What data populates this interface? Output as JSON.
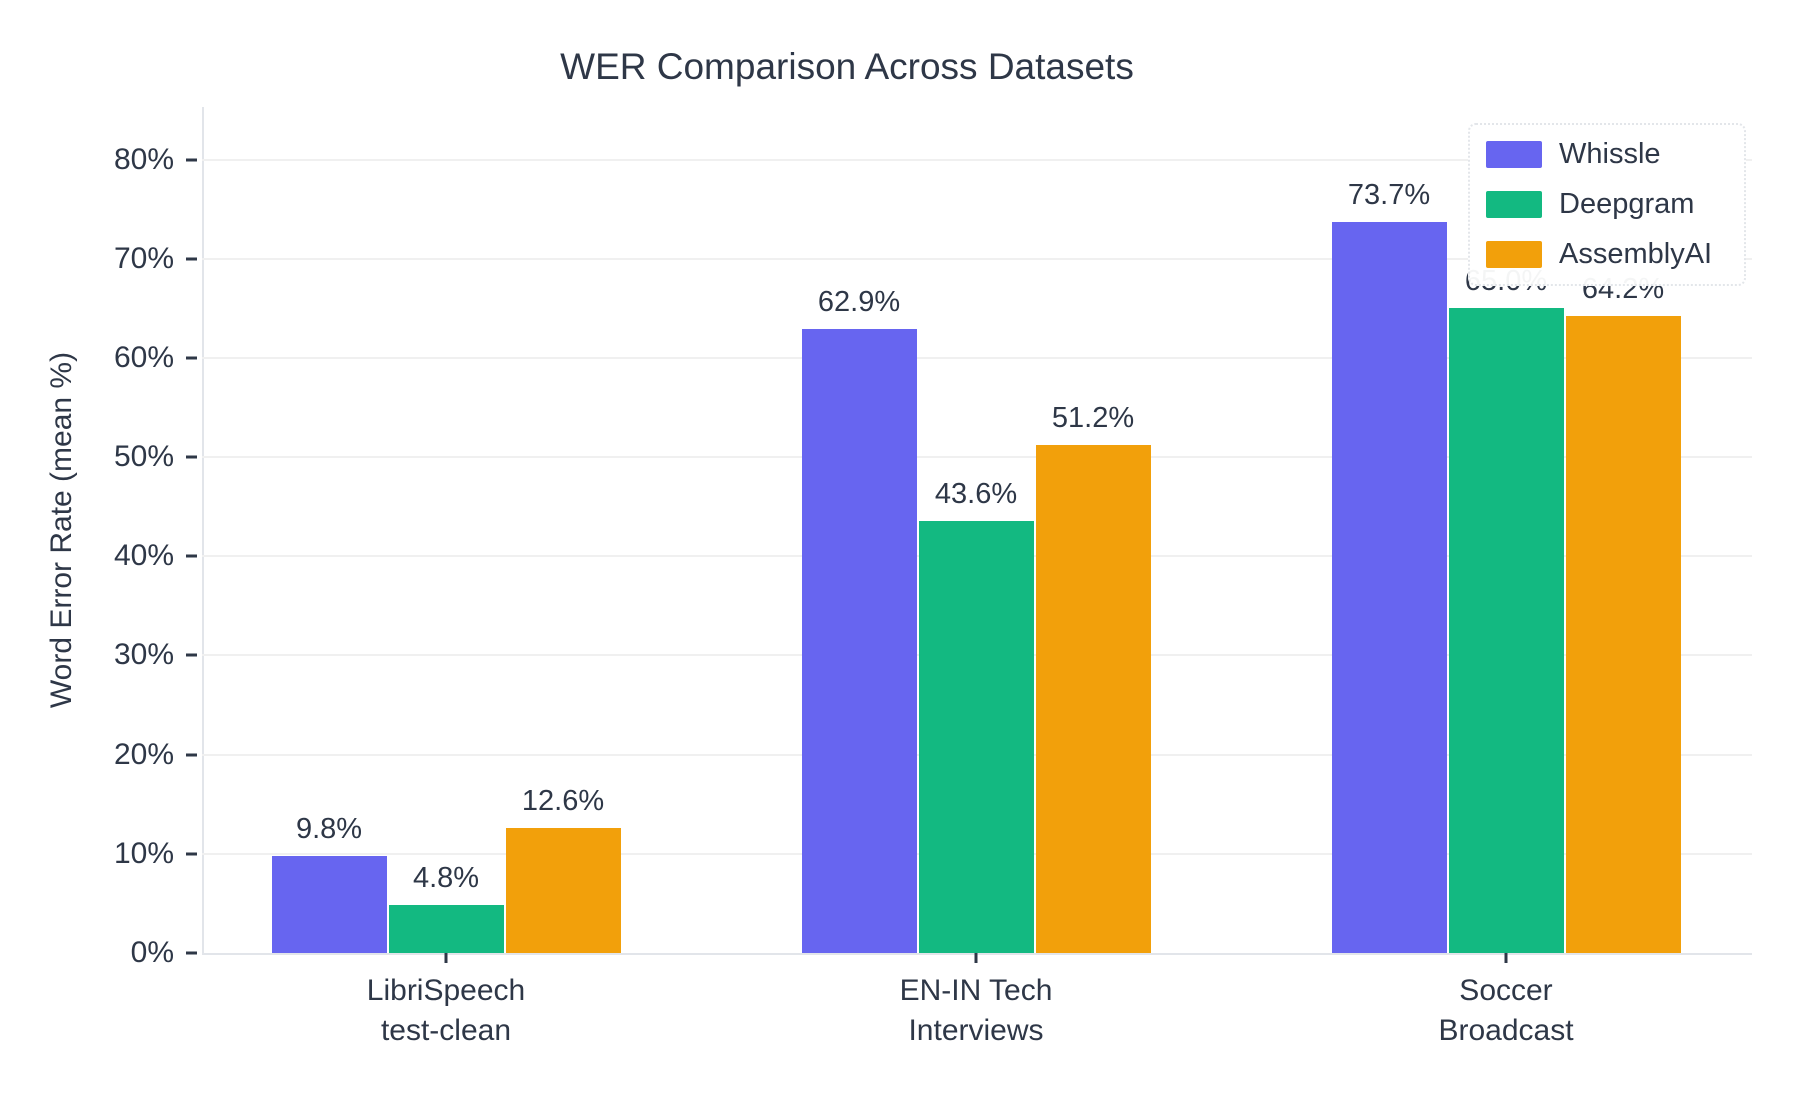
{
  "chart_data": {
    "type": "bar",
    "title": "WER Comparison Across Datasets",
    "xlabel": "",
    "ylabel": "Word Error Rate (mean %)",
    "categories": [
      "LibriSpeech\ntest-clean",
      "EN-IN Tech\nInterviews",
      "Soccer\nBroadcast"
    ],
    "series": [
      {
        "name": "Whissle",
        "color": "#6765f0",
        "values": [
          9.8,
          62.9,
          73.7
        ],
        "value_labels": [
          "9.8%",
          "62.9%",
          "73.7%"
        ]
      },
      {
        "name": "Deepgram",
        "color": "#13b981",
        "values": [
          4.8,
          43.6,
          65.0
        ],
        "value_labels": [
          "4.8%",
          "43.6%",
          "65.0%"
        ]
      },
      {
        "name": "AssemblyAI",
        "color": "#f2a00b",
        "values": [
          12.6,
          51.2,
          64.2
        ],
        "value_labels": [
          "12.6%",
          "51.2%",
          "64.2%"
        ]
      }
    ],
    "y_ticks": [
      "0%",
      "10%",
      "20%",
      "30%",
      "40%",
      "50%",
      "60%",
      "70%",
      "80%"
    ],
    "y_tick_values": [
      0,
      10,
      20,
      30,
      40,
      50,
      60,
      70,
      80
    ],
    "ylim": [
      0,
      85.3
    ],
    "grid": "horizontal",
    "legend_position": "top-right",
    "colors": {
      "text": "#2e3747",
      "grid": "#f0f0f0",
      "spine": "#e2e5ea",
      "background": "#ffffff"
    }
  }
}
